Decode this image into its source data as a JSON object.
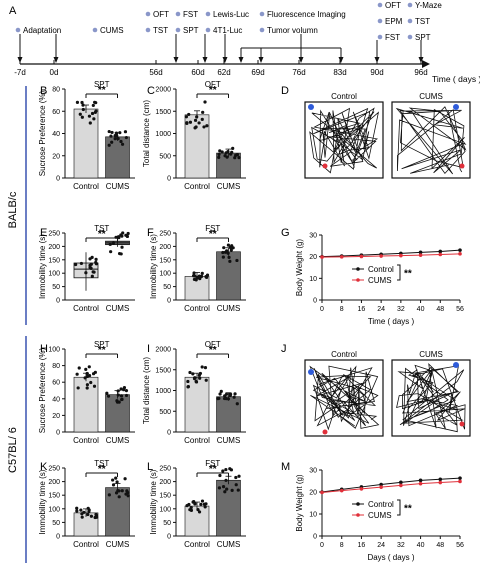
{
  "figure": {
    "strain_labels": [
      "BALB/c",
      "C57BL/ 6"
    ],
    "accent_color": "#3a53b0",
    "control_bar_color": "#d9d9d9",
    "cums_bar_color": "#6b6b6b",
    "weight_control_color": "#111111",
    "weight_cums_color": "#e0303a"
  },
  "timeline": {
    "panel_label": "A",
    "ticks": [
      "-7d",
      "0d",
      "56d",
      "60d",
      "62d",
      "69d",
      "76d",
      "83d",
      "90d",
      "96d"
    ],
    "axis_title": "Time ( days )",
    "events": [
      {
        "label": "Adaptation",
        "row": 1
      },
      {
        "label": "CUMS",
        "row": 1
      },
      {
        "label": "OFT",
        "row": 0
      },
      {
        "label": "TST",
        "row": 1
      },
      {
        "label": "FST",
        "row": 0
      },
      {
        "label": "SPT",
        "row": 1
      },
      {
        "label": "Lewis-Luc",
        "row": 0
      },
      {
        "label": "4T1-Luc",
        "row": 1
      },
      {
        "label": "Fluorescence Imaging",
        "row": 0
      },
      {
        "label": "Tumor volumn",
        "row": 1
      },
      {
        "label": "OFT",
        "row": 0
      },
      {
        "label": "EPM",
        "row": 1
      },
      {
        "label": "FST",
        "row": 2
      },
      {
        "label": "Y-Maze",
        "row": 0
      },
      {
        "label": "TST",
        "row": 1
      },
      {
        "label": "SPT",
        "row": 2
      }
    ]
  },
  "chart_data": [
    {
      "type": "bar",
      "panel": "B",
      "title": "SPT",
      "ylabel": "Sucrose Preference (%)",
      "categories": [
        "Control",
        "CUMS"
      ],
      "values": [
        62,
        37
      ],
      "ylim": [
        0,
        80
      ],
      "yticks": [
        0,
        20,
        40,
        60,
        80
      ],
      "significance": "**"
    },
    {
      "type": "bar",
      "panel": "C",
      "title": "OFT",
      "ylabel": "Total distance (cm)",
      "categories": [
        "Control",
        "CUMS"
      ],
      "values": [
        1420,
        560
      ],
      "ylim": [
        0,
        2000
      ],
      "yticks": [
        0,
        500,
        1000,
        1500,
        2000
      ],
      "significance": "**"
    },
    {
      "type": "bar",
      "panel": "E",
      "title": "TST",
      "ylabel": "Immobility time (s)",
      "categories": [
        "Control",
        "CUMS"
      ],
      "values": [
        115,
        213
      ],
      "ylim": [
        0,
        250
      ],
      "yticks": [
        0,
        50,
        100,
        150,
        200,
        250
      ],
      "significance": "**",
      "style": "box"
    },
    {
      "type": "bar",
      "panel": "F",
      "title": "FST",
      "ylabel": "Immobility time (s)",
      "categories": [
        "Control",
        "CUMS"
      ],
      "values": [
        88,
        180
      ],
      "ylim": [
        0,
        250
      ],
      "yticks": [
        0,
        50,
        100,
        150,
        200,
        250
      ],
      "significance": "**"
    },
    {
      "type": "line",
      "panel": "G",
      "ylabel": "Body Weight (g)",
      "xlabel": "Time ( days )",
      "x": [
        0,
        8,
        16,
        24,
        32,
        40,
        48,
        56
      ],
      "xlim": [
        0,
        56
      ],
      "ylim": [
        0,
        30
      ],
      "yticks": [
        0,
        10,
        20,
        30
      ],
      "series": [
        {
          "name": "Control",
          "values": [
            20,
            20.3,
            20.7,
            21.1,
            21.5,
            22,
            22.4,
            23
          ]
        },
        {
          "name": "CUMS",
          "values": [
            19.8,
            19.9,
            20.1,
            20.3,
            20.5,
            20.7,
            21,
            21.3
          ]
        }
      ],
      "significance": "**"
    },
    {
      "type": "bar",
      "panel": "H",
      "title": "SPT",
      "ylabel": "Sucrose Preference (%)",
      "categories": [
        "Control",
        "CUMS"
      ],
      "values": [
        66,
        45
      ],
      "ylim": [
        0,
        100
      ],
      "yticks": [
        0,
        20,
        40,
        60,
        80,
        100
      ],
      "significance": "**"
    },
    {
      "type": "bar",
      "panel": "I",
      "title": "OFT",
      "ylabel": "Total distance (cm)",
      "categories": [
        "Control",
        "CUMS"
      ],
      "values": [
        1320,
        850
      ],
      "ylim": [
        0,
        2000
      ],
      "yticks": [
        0,
        500,
        1000,
        1500,
        2000
      ],
      "significance": "**"
    },
    {
      "type": "bar",
      "panel": "K",
      "title": "TST",
      "ylabel": "Immobility time (s)",
      "categories": [
        "Control",
        "CUMS"
      ],
      "values": [
        85,
        178
      ],
      "ylim": [
        0,
        250
      ],
      "yticks": [
        0,
        50,
        100,
        150,
        200,
        250
      ],
      "significance": "**"
    },
    {
      "type": "bar",
      "panel": "L",
      "title": "FST",
      "ylabel": "Immobility time (s)",
      "categories": [
        "Control",
        "CUMS"
      ],
      "values": [
        110,
        205
      ],
      "ylim": [
        0,
        250
      ],
      "yticks": [
        0,
        50,
        100,
        150,
        200,
        250
      ],
      "significance": "**"
    },
    {
      "type": "line",
      "panel": "M",
      "ylabel": "Body Weight (g)",
      "xlabel": "Days ( days )",
      "x": [
        0,
        8,
        16,
        24,
        32,
        40,
        48,
        56
      ],
      "xlim": [
        0,
        56
      ],
      "ylim": [
        0,
        30
      ],
      "yticks": [
        0,
        10,
        20,
        30
      ],
      "series": [
        {
          "name": "Control",
          "values": [
            20,
            21.2,
            22.3,
            23.4,
            24.4,
            25.3,
            25.8,
            26.3
          ]
        },
        {
          "name": "CUMS",
          "values": [
            19.8,
            20.6,
            21.4,
            22.2,
            23,
            23.8,
            24.3,
            24.8
          ]
        }
      ],
      "significance": "**"
    }
  ],
  "tracks": [
    {
      "panel": "D",
      "labels": [
        "Control",
        "CUMS"
      ]
    },
    {
      "panel": "J",
      "labels": [
        "Control",
        "CUMS"
      ]
    }
  ]
}
